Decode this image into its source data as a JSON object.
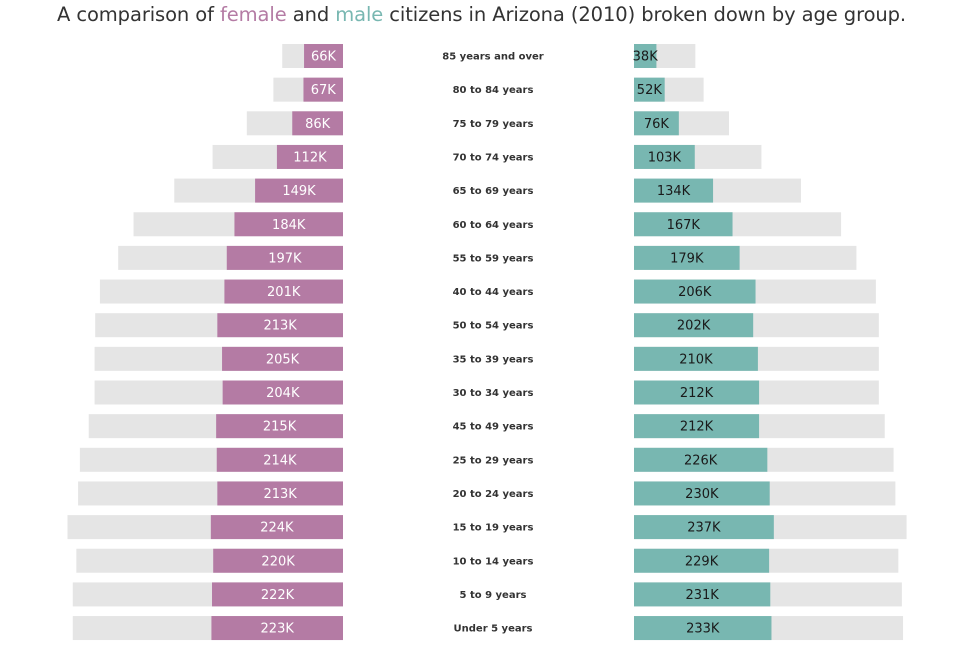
{
  "title": {
    "prefix": "A comparison of ",
    "female_word": "female",
    "middle": " and ",
    "male_word": "male",
    "suffix": " citizens in Arizona (2010) broken down by age group."
  },
  "colors": {
    "female": "#b47ba4",
    "male": "#78b7b1",
    "background_bar": "#e5e5e5",
    "text": "#333333"
  },
  "chart_data": {
    "type": "bar",
    "orientation": "horizontal",
    "layout": "butterfly",
    "categories": [
      "85 years and over",
      "80 to 84 years",
      "75 to 79 years",
      "70 to 74 years",
      "65 to 69 years",
      "60 to 64 years",
      "55 to 59 years",
      "40 to 44 years",
      "50 to 54 years",
      "35 to 39 years",
      "30 to 34 years",
      "45 to 49 years",
      "25 to 29 years",
      "20 to 24 years",
      "15 to 19 years",
      "10 to 14 years",
      "5 to 9 years",
      "Under 5 years"
    ],
    "series": [
      {
        "name": "female",
        "side": "left",
        "values": [
          66,
          67,
          86,
          112,
          149,
          184,
          197,
          201,
          213,
          205,
          204,
          215,
          214,
          213,
          224,
          220,
          222,
          223
        ],
        "labels": [
          "66K",
          "67K",
          "86K",
          "112K",
          "149K",
          "184K",
          "197K",
          "201K",
          "213K",
          "205K",
          "204K",
          "215K",
          "214K",
          "213K",
          "224K",
          "220K",
          "222K",
          "223K"
        ],
        "background_values": [
          103,
          118,
          163,
          221,
          286,
          355,
          381,
          412,
          420,
          421,
          421,
          431,
          446,
          449,
          467,
          452,
          458,
          458
        ]
      },
      {
        "name": "male",
        "side": "right",
        "values": [
          38,
          52,
          76,
          103,
          134,
          167,
          179,
          206,
          202,
          210,
          212,
          212,
          226,
          230,
          237,
          229,
          231,
          233
        ],
        "labels": [
          "38K",
          "52K",
          "76K",
          "103K",
          "134K",
          "167K",
          "179K",
          "206K",
          "202K",
          "210K",
          "212K",
          "212K",
          "226K",
          "230K",
          "237K",
          "229K",
          "231K",
          "233K"
        ],
        "background_values": [
          104,
          118,
          161,
          216,
          283,
          351,
          377,
          410,
          415,
          415,
          415,
          425,
          440,
          443,
          462,
          448,
          454,
          456
        ]
      }
    ],
    "units": "thousands",
    "grid": false,
    "legend": "none"
  }
}
